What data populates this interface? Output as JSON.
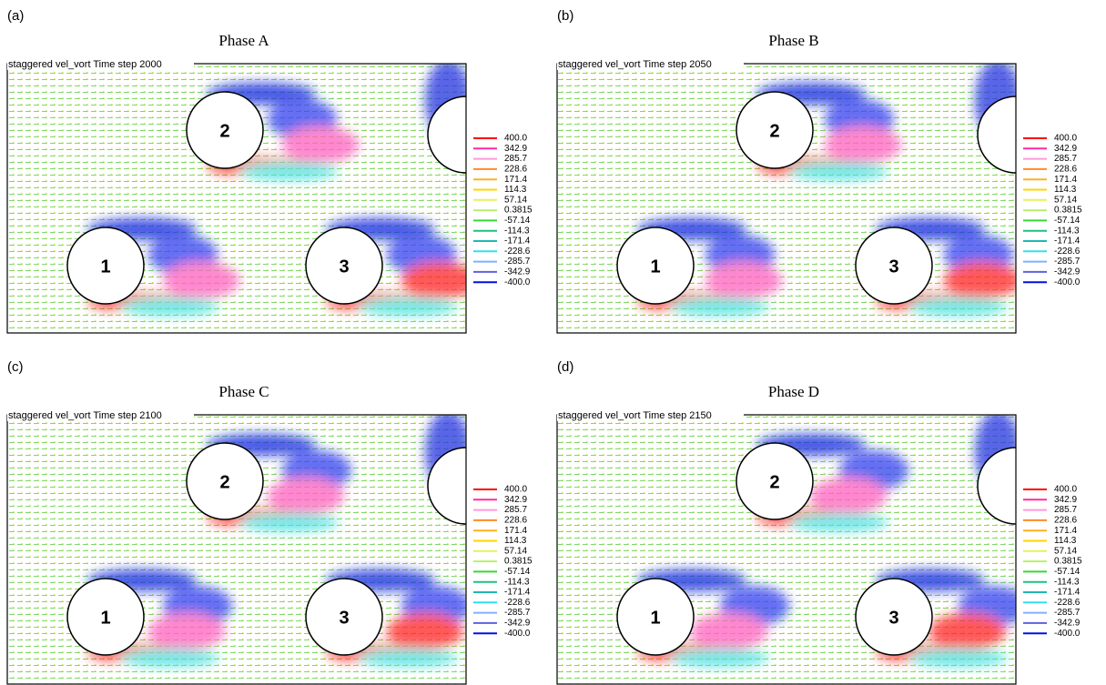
{
  "panels": [
    {
      "label": "(a)",
      "title": "Phase A",
      "caption": "staggered vel_vort Time step 2000",
      "cylinders": [
        "1",
        "2",
        "3"
      ]
    },
    {
      "label": "(b)",
      "title": "Phase B",
      "caption": "staggered vel_vort Time step 2050",
      "cylinders": [
        "1",
        "2",
        "3"
      ]
    },
    {
      "label": "(c)",
      "title": "Phase C",
      "caption": "staggered vel_vort Time step 2100",
      "cylinders": [
        "1",
        "2",
        "3"
      ]
    },
    {
      "label": "(d)",
      "title": "Phase D",
      "caption": "staggered vel_vort Time step 2150",
      "cylinders": [
        "1",
        "2",
        "3"
      ]
    }
  ],
  "legend": {
    "labels": [
      "400.0",
      "342.9",
      "285.7",
      "228.6",
      "171.4",
      "114.3",
      "57.14",
      "0.3815",
      "-57.14",
      "-114.3",
      "-171.4",
      "-228.6",
      "-285.7",
      "-342.9",
      "-400.0"
    ],
    "colors": [
      "#ff0000",
      "#ff2aa0",
      "#ff9ad8",
      "#ff8a2a",
      "#ffb020",
      "#ffd400",
      "#e8f060",
      "#b8f070",
      "#38d838",
      "#20c080",
      "#20b8b0",
      "#30e0f0",
      "#80b0ff",
      "#6060e0",
      "#0010e0"
    ]
  }
}
